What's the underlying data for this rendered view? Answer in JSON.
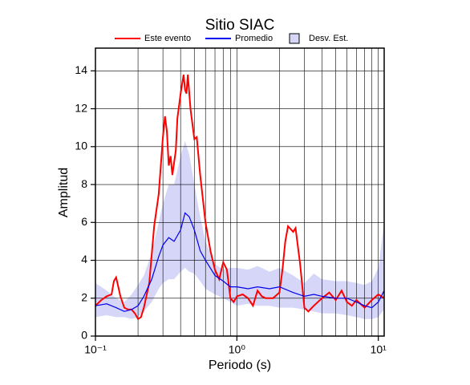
{
  "chart_data": {
    "type": "line",
    "title": "Sitio SIAC",
    "xlabel": "Periodo (s)",
    "ylabel": "Amplitud",
    "xscale": "log",
    "xlim": [
      0.1,
      11
    ],
    "ylim": [
      0,
      15.2
    ],
    "xticks": [
      {
        "value": 0.1,
        "label": "10⁻¹"
      },
      {
        "value": 1,
        "label": "10⁰"
      },
      {
        "value": 10,
        "label": "10¹"
      }
    ],
    "xminorticks": [
      0.2,
      0.3,
      0.4,
      0.5,
      0.6,
      0.7,
      0.8,
      0.9,
      2,
      3,
      4,
      5,
      6,
      7,
      8,
      9
    ],
    "yticks": [
      0,
      2,
      4,
      6,
      8,
      10,
      12,
      14
    ],
    "grid": true,
    "legend": "top",
    "series": [
      {
        "name": "Desv. Est.",
        "type": "band",
        "color": "#d6d6f8",
        "x": [
          0.1,
          0.12,
          0.14,
          0.16,
          0.18,
          0.2,
          0.22,
          0.25,
          0.28,
          0.3,
          0.33,
          0.36,
          0.4,
          0.43,
          0.46,
          0.5,
          0.55,
          0.6,
          0.7,
          0.8,
          0.9,
          1.0,
          1.2,
          1.4,
          1.7,
          2.0,
          2.5,
          3,
          3.5,
          4,
          5,
          6,
          7,
          8,
          9,
          10,
          11
        ],
        "upper": [
          2.8,
          2.4,
          2.0,
          1.8,
          2.2,
          2.7,
          3.2,
          4.4,
          6.0,
          7.0,
          8.0,
          8.0,
          9.5,
          10.3,
          9.6,
          8.0,
          6.3,
          5.0,
          3.8,
          3.5,
          3.6,
          3.6,
          3.5,
          3.7,
          3.4,
          3.6,
          3.2,
          2.8,
          3.3,
          3.0,
          2.9,
          2.9,
          2.8,
          2.7,
          2.9,
          3.6,
          6.0
        ],
        "lower": [
          1.0,
          1.1,
          1.0,
          1.0,
          0.9,
          1.0,
          1.3,
          1.8,
          2.5,
          2.8,
          3.0,
          3.0,
          3.4,
          3.6,
          3.4,
          3.3,
          2.9,
          2.5,
          2.2,
          2.0,
          1.8,
          1.6,
          1.7,
          1.6,
          1.6,
          1.5,
          1.5,
          1.4,
          1.3,
          1.2,
          1.2,
          1.1,
          1.0,
          0.9,
          0.9,
          1.0,
          1.4
        ]
      },
      {
        "name": "Este evento",
        "type": "line",
        "color": "#ff0000",
        "x": [
          0.1,
          0.11,
          0.12,
          0.13,
          0.135,
          0.14,
          0.145,
          0.15,
          0.16,
          0.17,
          0.18,
          0.19,
          0.2,
          0.21,
          0.22,
          0.24,
          0.26,
          0.28,
          0.3,
          0.31,
          0.32,
          0.33,
          0.34,
          0.35,
          0.37,
          0.38,
          0.4,
          0.42,
          0.43,
          0.44,
          0.45,
          0.47,
          0.5,
          0.52,
          0.55,
          0.6,
          0.65,
          0.7,
          0.75,
          0.8,
          0.85,
          0.9,
          0.95,
          1.0,
          1.1,
          1.2,
          1.3,
          1.4,
          1.5,
          1.6,
          1.8,
          2.0,
          2.1,
          2.2,
          2.3,
          2.5,
          2.6,
          2.8,
          3.0,
          3.2,
          3.5,
          4.0,
          4.5,
          5.0,
          5.5,
          6,
          6.5,
          7,
          8,
          9,
          10,
          11
        ],
        "values": [
          1.6,
          1.9,
          2.1,
          2.2,
          2.9,
          3.1,
          2.6,
          2.1,
          1.5,
          1.4,
          1.4,
          1.2,
          0.9,
          1.0,
          1.5,
          2.8,
          5.8,
          7.5,
          10.5,
          11.6,
          10.8,
          9.0,
          9.5,
          8.5,
          9.8,
          11.5,
          12.8,
          13.8,
          13.0,
          12.8,
          13.8,
          12.0,
          10.4,
          10.5,
          8.5,
          6.0,
          4.5,
          3.5,
          3.0,
          3.9,
          3.5,
          2.0,
          1.8,
          2.1,
          2.2,
          2.0,
          1.6,
          2.4,
          2.1,
          2.0,
          2.0,
          2.3,
          3.5,
          5.0,
          5.8,
          5.5,
          5.7,
          3.8,
          1.5,
          1.3,
          1.6,
          2.0,
          2.3,
          1.9,
          2.4,
          1.8,
          1.6,
          1.9,
          1.5,
          1.9,
          2.2,
          2.0
        ]
      },
      {
        "name": "Promedio",
        "type": "line",
        "color": "#0000ee",
        "x": [
          0.1,
          0.12,
          0.14,
          0.16,
          0.18,
          0.2,
          0.22,
          0.25,
          0.28,
          0.3,
          0.33,
          0.36,
          0.4,
          0.43,
          0.46,
          0.5,
          0.55,
          0.6,
          0.7,
          0.8,
          0.9,
          1.0,
          1.2,
          1.4,
          1.7,
          2.0,
          2.5,
          3,
          3.5,
          4,
          5,
          6,
          7,
          8,
          9,
          10,
          11
        ],
        "values": [
          1.6,
          1.7,
          1.5,
          1.3,
          1.4,
          1.6,
          2.1,
          3.0,
          4.2,
          4.8,
          5.2,
          5.0,
          5.6,
          6.5,
          6.3,
          5.6,
          4.5,
          4.0,
          3.2,
          2.9,
          2.6,
          2.6,
          2.5,
          2.6,
          2.5,
          2.6,
          2.3,
          2.1,
          2.2,
          2.1,
          2.0,
          2.0,
          1.8,
          1.6,
          1.5,
          1.8,
          2.4
        ]
      }
    ]
  }
}
